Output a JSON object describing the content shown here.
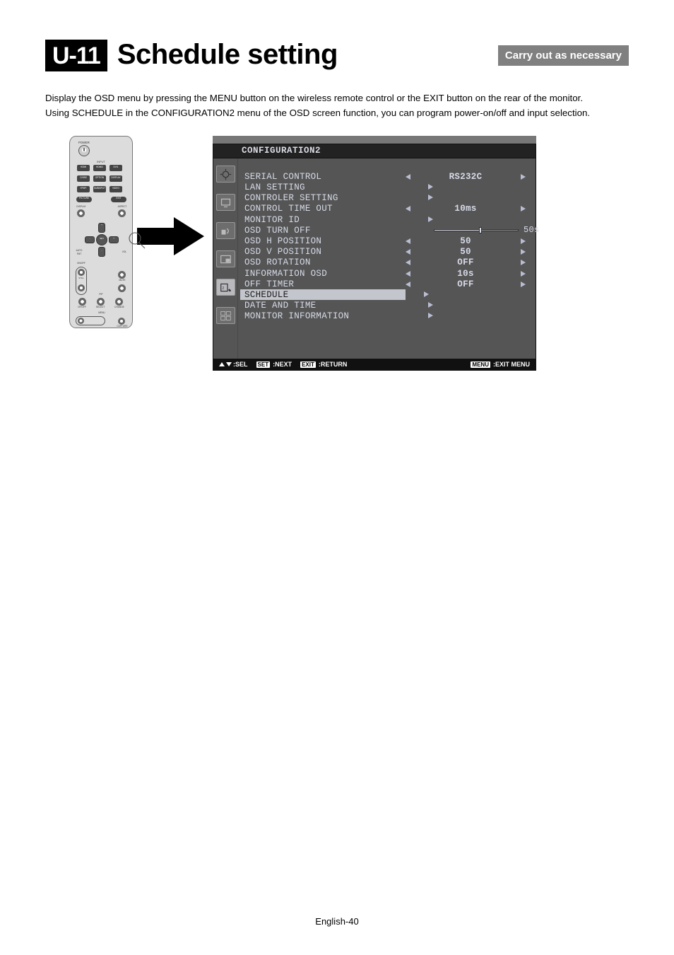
{
  "header": {
    "code": "U-11",
    "title": "Schedule setting",
    "tag": "Carry out as necessary"
  },
  "intro": {
    "line1": "Display the OSD menu by pressing the MENU button on the wireless remote control or the EXIT button on the rear of the monitor.",
    "line2": "Using SCHEDULE in the CONFIGURATION2 menu of the OSD screen function, you can program power-on/off and input selection."
  },
  "remote": {
    "labels": {
      "power": "POWER",
      "input": "INPUT",
      "hdmi": "HDMI",
      "hdmi2": "HDMI2",
      "dvi": "DVI1",
      "cvbs": "C/VBS",
      "option": "OPTION",
      "display": "DISPLAY",
      "ypbpr": "YPbPr",
      "subinput": "SUBINPUT",
      "video": "VIDEO",
      "picture": "PICTURE",
      "exit": "EXIT",
      "displayp": "DISPLAY",
      "aspect": "ASPECT",
      "vol": "VOL",
      "set": "SET",
      "auto": "AUTO",
      "fmt": "FMT",
      "onoff": "ON/OFF",
      "select": "SELECT",
      "change": "CHANGE",
      "menu": "MENU",
      "pip": "PIP",
      "still": "STILL",
      "mute": "MUTE",
      "plus": "+",
      "minus": "-",
      "capture": "CAPTURE",
      "ofoff": "OF/OFF"
    }
  },
  "osd": {
    "title": "CONFIGURATION2",
    "rows": [
      {
        "label": "SERIAL CONTROL",
        "type": "lr",
        "value": "RS232C"
      },
      {
        "label": "LAN SETTING",
        "type": "r"
      },
      {
        "label": "CONTROLER SETTING",
        "type": "r"
      },
      {
        "label": "CONTROL TIME OUT",
        "type": "lr",
        "value": "10ms"
      },
      {
        "label": "MONITOR ID",
        "type": "r"
      },
      {
        "label": "OSD TURN OFF",
        "type": "slider",
        "end": "50s"
      },
      {
        "label": "OSD H POSITION",
        "type": "lr",
        "value": "50"
      },
      {
        "label": "OSD V POSITION",
        "type": "lr",
        "value": "50"
      },
      {
        "label": "OSD ROTATION",
        "type": "lr",
        "value": "OFF"
      },
      {
        "label": "INFORMATION OSD",
        "type": "lr",
        "value": "10s"
      },
      {
        "label": "OFF TIMER",
        "type": "lr",
        "value": "OFF"
      },
      {
        "label": "SCHEDULE",
        "type": "r",
        "highlight": true
      },
      {
        "label": "DATE AND TIME",
        "type": "r"
      },
      {
        "label": "MONITOR INFORMATION",
        "type": "r"
      }
    ],
    "footer": {
      "sel": ":SEL",
      "set": "SET",
      "next": ":NEXT",
      "exit": "EXIT",
      "return": ":RETURN",
      "menu": "MENU",
      "exitmenu": ":EXIT MENU"
    }
  },
  "page": "English-40"
}
